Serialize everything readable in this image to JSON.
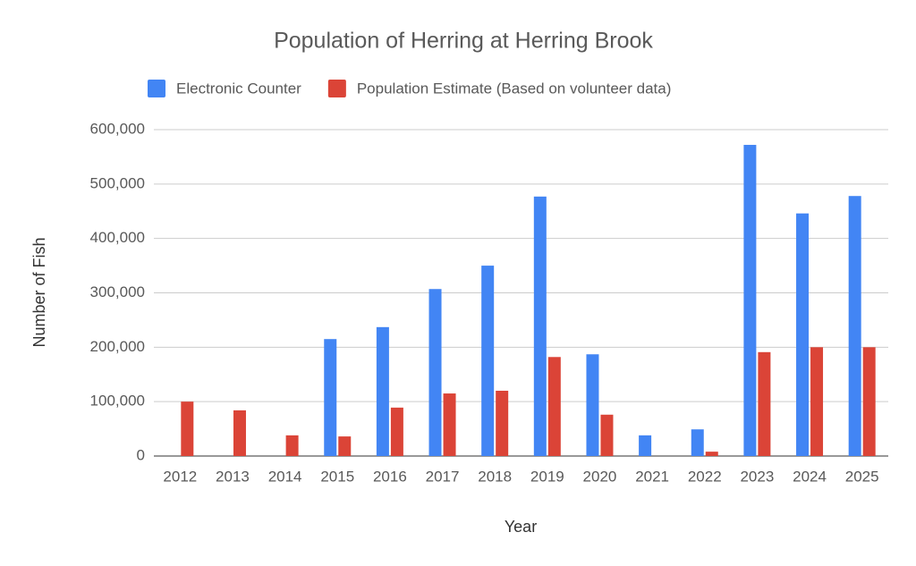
{
  "chart_data": {
    "type": "bar",
    "title": "Population of Herring at Herring Brook",
    "x_label": "Year",
    "y_label": "Number of Fish",
    "categories": [
      "2012",
      "2013",
      "2014",
      "2015",
      "2016",
      "2017",
      "2018",
      "2019",
      "2020",
      "2021",
      "2022",
      "2023",
      "2024",
      "2025"
    ],
    "series": [
      {
        "name": "Electronic Counter",
        "color": "#4285f4",
        "values": [
          null,
          null,
          null,
          215000,
          237000,
          307000,
          350000,
          477000,
          187000,
          38000,
          49000,
          572000,
          446000,
          478000
        ]
      },
      {
        "name": "Population Estimate (Based on volunteer data)",
        "color": "#db4437",
        "values": [
          100000,
          84000,
          38000,
          36000,
          89000,
          115000,
          120000,
          182000,
          76000,
          null,
          8000,
          191000,
          200000,
          200000
        ]
      }
    ],
    "ylim": [
      0,
      600000
    ],
    "yticks": [
      0,
      {
        "value": 100000,
        "label": "100,000"
      },
      {
        "value": 200000,
        "label": "200,000"
      },
      {
        "value": 300000,
        "label": "300,000"
      },
      {
        "value": 400000,
        "label": "400,000"
      },
      {
        "value": 500000,
        "label": "500,000"
      },
      {
        "value": 600000,
        "label": "600,000"
      }
    ],
    "grid": true,
    "legend": "top"
  }
}
